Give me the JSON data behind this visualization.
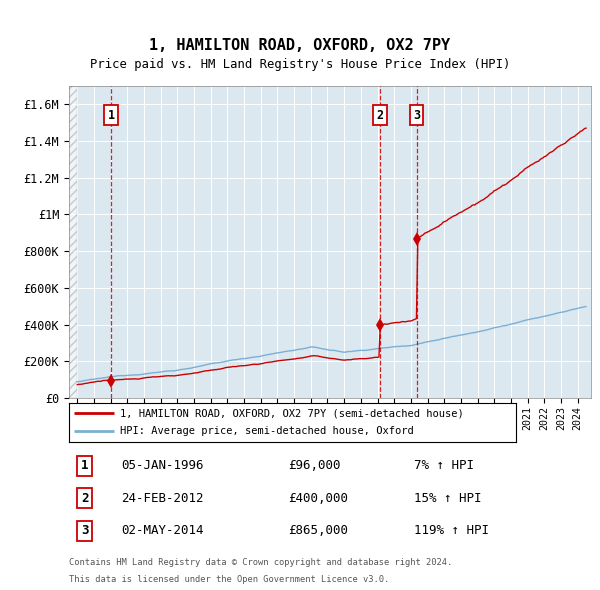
{
  "title": "1, HAMILTON ROAD, OXFORD, OX2 7PY",
  "subtitle": "Price paid vs. HM Land Registry's House Price Index (HPI)",
  "ylim": [
    0,
    1700000
  ],
  "yticks": [
    0,
    200000,
    400000,
    600000,
    800000,
    1000000,
    1200000,
    1400000,
    1600000
  ],
  "ytick_labels": [
    "£0",
    "£200K",
    "£400K",
    "£600K",
    "£800K",
    "£1M",
    "£1.2M",
    "£1.4M",
    "£1.6M"
  ],
  "sale_color": "#cc0000",
  "hpi_color": "#7bafd4",
  "plot_bg": "#dce8f0",
  "grid_color": "#ffffff",
  "sales": [
    {
      "date_num": 1996.03,
      "price": 96000,
      "label": "1"
    },
    {
      "date_num": 2012.15,
      "price": 400000,
      "label": "2"
    },
    {
      "date_num": 2014.34,
      "price": 865000,
      "label": "3"
    }
  ],
  "legend_entries": [
    "1, HAMILTON ROAD, OXFORD, OX2 7PY (semi-detached house)",
    "HPI: Average price, semi-detached house, Oxford"
  ],
  "table_rows": [
    {
      "num": "1",
      "date": "05-JAN-1996",
      "price": "£96,000",
      "hpi": "7% ↑ HPI"
    },
    {
      "num": "2",
      "date": "24-FEB-2012",
      "price": "£400,000",
      "hpi": "15% ↑ HPI"
    },
    {
      "num": "3",
      "date": "02-MAY-2014",
      "price": "£865,000",
      "hpi": "119% ↑ HPI"
    }
  ],
  "footer": [
    "Contains HM Land Registry data © Crown copyright and database right 2024.",
    "This data is licensed under the Open Government Licence v3.0."
  ],
  "xmin": 1993.5,
  "xmax": 2024.8
}
